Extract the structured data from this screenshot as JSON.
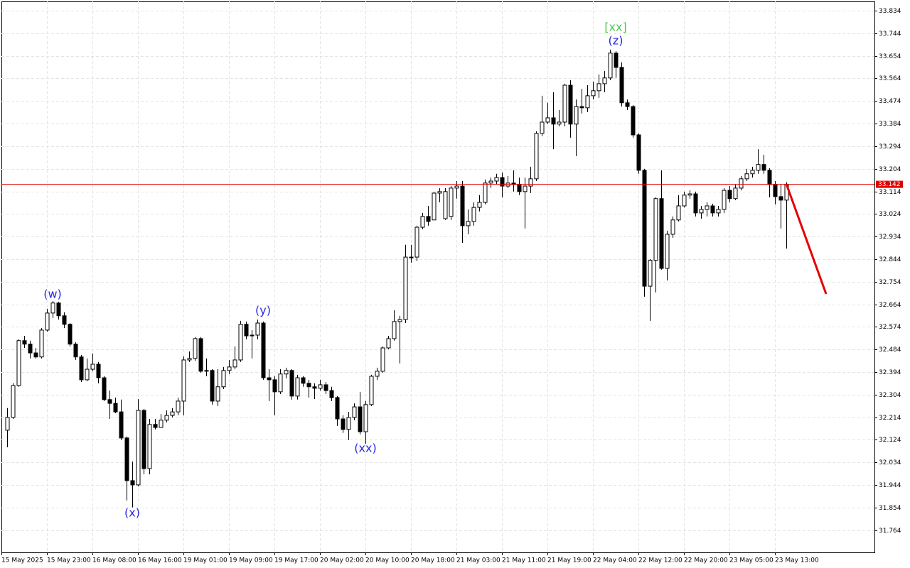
{
  "chart_data": {
    "type": "candlestick",
    "categories": [
      "15 May 2025",
      null,
      null,
      null,
      null,
      null,
      null,
      null,
      "15 May 23:00",
      null,
      null,
      null,
      null,
      null,
      null,
      null,
      "16 May 08:00",
      null,
      null,
      null,
      null,
      null,
      null,
      null,
      "16 May 16:00",
      null,
      null,
      null,
      null,
      null,
      null,
      null,
      "19 May 01:00",
      null,
      null,
      null,
      null,
      null,
      null,
      null,
      "19 May 09:00",
      null,
      null,
      null,
      null,
      null,
      null,
      null,
      "19 May 17:00",
      null,
      null,
      null,
      null,
      null,
      null,
      null,
      "20 May 02:00",
      null,
      null,
      null,
      null,
      null,
      null,
      null,
      "20 May 10:00",
      null,
      null,
      null,
      null,
      null,
      null,
      null,
      "20 May 18:00",
      null,
      null,
      null,
      null,
      null,
      null,
      null,
      "21 May 03:00",
      null,
      null,
      null,
      null,
      null,
      null,
      null,
      "21 May 11:00",
      null,
      null,
      null,
      null,
      null,
      null,
      null,
      "21 May 19:00",
      null,
      null,
      null,
      null,
      null,
      null,
      null,
      "22 May 04:00",
      null,
      null,
      null,
      null,
      null,
      null,
      null,
      "22 May 12:00",
      null,
      null,
      null,
      null,
      null,
      null,
      null,
      "22 May 20:00",
      null,
      null,
      null,
      null,
      null,
      null,
      null,
      "23 May 05:00",
      null,
      null,
      null,
      null,
      null,
      null,
      null,
      "23 May 13:00",
      null
    ],
    "open": [
      32.162,
      32.213,
      32.34,
      32.519,
      32.505,
      32.47,
      32.454,
      32.561,
      32.629,
      32.669,
      32.618,
      32.584,
      32.505,
      32.454,
      32.363,
      32.405,
      32.425,
      32.371,
      32.284,
      32.269,
      32.235,
      32.131,
      31.961,
      31.944,
      32.241,
      32.009,
      32.185,
      32.173,
      32.202,
      32.221,
      32.235,
      32.278,
      32.442,
      32.448,
      32.527,
      32.397,
      32.4,
      32.278,
      32.335,
      32.4,
      32.414,
      32.442,
      32.584,
      32.538,
      32.541,
      32.589,
      32.371,
      32.363,
      32.315,
      32.386,
      32.4,
      32.298,
      32.371,
      32.349,
      32.335,
      32.329,
      32.343,
      32.32,
      32.292,
      32.207,
      32.165,
      32.213,
      32.255,
      32.156,
      32.264,
      32.377,
      32.397,
      32.49,
      32.527,
      32.595,
      32.603,
      32.852,
      32.852,
      32.971,
      33.014,
      33.0,
      33.107,
      33.005,
      33.014,
      33.127,
      33.135,
      32.977,
      32.994,
      33.05,
      33.07,
      33.147,
      33.155,
      33.169,
      33.135,
      33.147,
      33.141,
      33.113,
      33.135,
      33.164,
      33.345,
      33.39,
      33.407,
      33.382,
      33.39,
      33.537,
      33.382,
      33.452,
      33.447,
      33.495,
      33.515,
      33.543,
      33.566,
      33.665,
      33.608,
      33.467,
      33.452,
      33.339,
      33.198,
      32.736,
      32.839,
      33.085,
      32.807,
      32.943,
      33.0,
      33.056,
      33.099,
      33.104,
      33.028,
      33.042,
      33.056,
      33.028,
      33.042,
      33.118,
      33.085,
      33.127,
      33.164,
      33.184,
      33.198,
      33.221,
      33.198,
      33.141,
      33.093,
      33.079
    ],
    "high": [
      32.25,
      32.349,
      32.524,
      32.538,
      32.519,
      32.49,
      32.569,
      32.646,
      32.677,
      32.674,
      32.632,
      32.589,
      32.513,
      32.462,
      32.448,
      32.468,
      32.434,
      32.377,
      32.32,
      32.292,
      32.284,
      32.137,
      32.037,
      32.286,
      32.247,
      32.207,
      32.207,
      32.227,
      32.241,
      32.25,
      32.292,
      32.456,
      32.476,
      32.533,
      32.533,
      32.448,
      32.405,
      32.405,
      32.414,
      32.442,
      32.496,
      32.598,
      32.595,
      32.561,
      32.603,
      32.595,
      32.405,
      32.377,
      32.405,
      32.411,
      32.405,
      32.383,
      32.377,
      32.363,
      32.349,
      32.363,
      32.354,
      32.335,
      32.298,
      32.221,
      32.235,
      32.269,
      32.315,
      32.278,
      32.383,
      32.411,
      32.496,
      32.538,
      32.64,
      32.618,
      32.901,
      32.901,
      32.977,
      33.028,
      33.056,
      33.113,
      33.127,
      33.127,
      33.135,
      33.155,
      33.155,
      33.042,
      33.07,
      33.099,
      33.161,
      33.169,
      33.184,
      33.189,
      33.175,
      33.198,
      33.169,
      33.169,
      33.212,
      33.353,
      33.495,
      33.467,
      33.509,
      33.438,
      33.543,
      33.557,
      33.48,
      33.523,
      33.537,
      33.551,
      33.58,
      33.594,
      33.679,
      33.673,
      33.628,
      33.48,
      33.458,
      33.345,
      33.204,
      32.844,
      33.09,
      33.198,
      32.957,
      33.014,
      33.099,
      33.113,
      33.118,
      33.113,
      33.056,
      33.07,
      33.065,
      33.056,
      33.127,
      33.135,
      33.141,
      33.175,
      33.204,
      33.212,
      33.282,
      33.26,
      33.206,
      33.155,
      33.141,
      33.15
    ],
    "low": [
      32.094,
      32.207,
      32.335,
      32.49,
      32.448,
      32.448,
      32.448,
      32.555,
      32.609,
      32.603,
      32.569,
      32.496,
      32.442,
      32.354,
      32.357,
      32.397,
      32.349,
      32.278,
      32.207,
      32.23,
      32.122,
      31.882,
      31.854,
      31.938,
      31.986,
      31.986,
      32.165,
      32.179,
      32.193,
      32.213,
      32.221,
      32.221,
      32.434,
      32.439,
      32.391,
      32.377,
      32.264,
      32.258,
      32.326,
      32.386,
      32.405,
      32.434,
      32.524,
      32.448,
      32.524,
      32.363,
      32.278,
      32.221,
      32.306,
      32.369,
      32.284,
      32.284,
      32.335,
      32.292,
      32.286,
      32.32,
      32.306,
      32.278,
      32.179,
      32.151,
      32.122,
      32.202,
      32.145,
      32.108,
      32.258,
      32.363,
      32.391,
      32.484,
      32.519,
      32.428,
      32.589,
      32.83,
      32.836,
      32.963,
      32.977,
      33.0,
      33.07,
      33.0,
      33.0,
      33.085,
      32.909,
      32.943,
      32.977,
      33.034,
      33.062,
      33.127,
      33.141,
      33.09,
      33.127,
      33.113,
      33.099,
      32.966,
      33.107,
      33.155,
      33.334,
      33.382,
      33.282,
      33.373,
      33.373,
      33.328,
      33.254,
      33.424,
      33.43,
      33.48,
      33.486,
      33.509,
      33.557,
      33.566,
      33.452,
      33.438,
      33.328,
      33.184,
      32.694,
      32.598,
      32.711,
      32.802,
      32.759,
      32.929,
      32.994,
      33.05,
      33.085,
      33.014,
      33.005,
      33.014,
      33.014,
      33.014,
      33.028,
      33.07,
      33.079,
      33.118,
      33.155,
      33.169,
      33.184,
      33.184,
      33.09,
      33.062,
      32.966,
      32.886
    ],
    "close": [
      32.213,
      32.34,
      32.519,
      32.505,
      32.47,
      32.454,
      32.561,
      32.629,
      32.669,
      32.618,
      32.584,
      32.505,
      32.454,
      32.363,
      32.405,
      32.425,
      32.371,
      32.284,
      32.269,
      32.235,
      32.131,
      31.961,
      31.944,
      32.241,
      32.009,
      32.185,
      32.173,
      32.202,
      32.221,
      32.235,
      32.278,
      32.442,
      32.448,
      32.527,
      32.397,
      32.4,
      32.278,
      32.335,
      32.4,
      32.414,
      32.442,
      32.584,
      32.538,
      32.541,
      32.589,
      32.371,
      32.363,
      32.315,
      32.386,
      32.4,
      32.298,
      32.371,
      32.349,
      32.335,
      32.329,
      32.343,
      32.32,
      32.292,
      32.207,
      32.165,
      32.213,
      32.255,
      32.156,
      32.264,
      32.377,
      32.397,
      32.49,
      32.527,
      32.595,
      32.603,
      32.852,
      32.852,
      32.971,
      33.014,
      32.994,
      33.107,
      33.113,
      33.113,
      33.127,
      33.135,
      32.977,
      32.994,
      33.05,
      33.07,
      33.147,
      33.155,
      33.169,
      33.135,
      33.147,
      33.141,
      33.113,
      33.135,
      33.164,
      33.345,
      33.39,
      33.407,
      33.382,
      33.39,
      33.537,
      33.382,
      33.452,
      33.447,
      33.495,
      33.515,
      33.543,
      33.566,
      33.665,
      33.608,
      33.467,
      33.452,
      33.339,
      33.198,
      32.736,
      32.839,
      33.085,
      32.807,
      32.943,
      33.0,
      33.056,
      33.099,
      33.104,
      33.028,
      33.042,
      33.056,
      33.028,
      33.042,
      33.118,
      33.085,
      33.127,
      33.164,
      33.184,
      33.198,
      33.221,
      33.198,
      33.141,
      33.093,
      33.079,
      33.142
    ],
    "up_color": "#ffffff",
    "down_color": "#000000",
    "ylim": [
      31.675,
      33.871
    ],
    "yticks": [
      33.834,
      33.744,
      33.654,
      33.564,
      33.474,
      33.384,
      33.294,
      33.204,
      33.114,
      33.024,
      32.934,
      32.844,
      32.754,
      32.664,
      32.574,
      32.484,
      32.394,
      32.304,
      32.214,
      32.124,
      32.034,
      31.944,
      31.854,
      31.764
    ],
    "grid": true,
    "current_price": 33.142,
    "current_price_color": "#e00000",
    "annotations": [
      {
        "text": "(w)",
        "color": "#2727e6"
      },
      {
        "text": "(x)",
        "color": "#2727e6"
      },
      {
        "text": "(y)",
        "color": "#2727e6"
      },
      {
        "text": "(xx)",
        "color": "#2727e6"
      },
      {
        "text": "(z)",
        "color": "#2727e6"
      },
      {
        "text": "[xx]",
        "color": "#4cc94c"
      }
    ]
  }
}
